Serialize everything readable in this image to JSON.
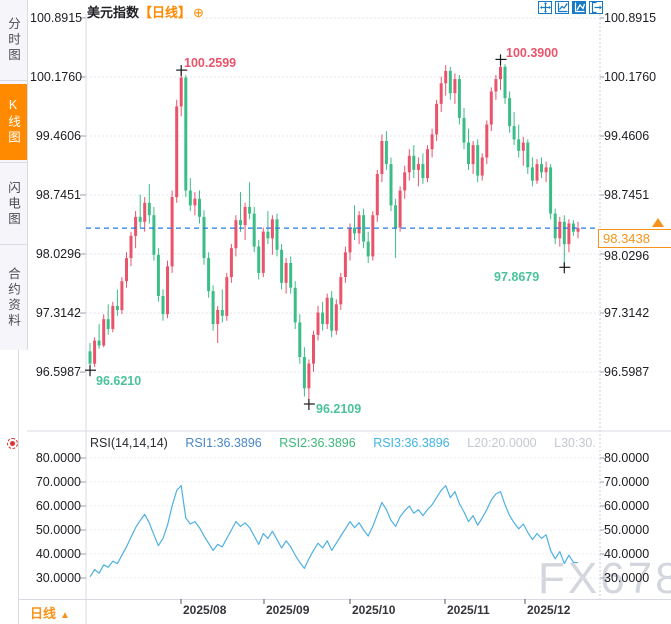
{
  "sidebar": {
    "tabs": [
      {
        "label": "分时图",
        "active": false
      },
      {
        "label": "K线图",
        "active": true
      },
      {
        "label": "闪电图",
        "active": false
      },
      {
        "label": "合约资料",
        "active": false
      }
    ]
  },
  "header": {
    "title": "美元指数",
    "period_tag": "【日线】",
    "plus_icon": "⊕"
  },
  "toolbar": {
    "icons": [
      "move-icon",
      "fit-scale-icon",
      "auto-scroll-icon",
      "exit-fullscreen-icon"
    ]
  },
  "axes": {
    "price_ticks": [
      "100.8915",
      "100.1760",
      "99.4606",
      "98.7451",
      "98.0296",
      "97.3142",
      "96.5987"
    ],
    "rsi_ticks": [
      "80.0000",
      "70.0000",
      "60.0000",
      "50.0000",
      "40.0000",
      "30.0000"
    ],
    "months": [
      "2025/08",
      "2025/09",
      "2025/10",
      "2025/11",
      "2025/12"
    ]
  },
  "annotations": {
    "high1": "100.2599",
    "high2": "100.3900",
    "low1": "96.6210",
    "low2": "96.2109",
    "low3": "97.8679"
  },
  "current_price": {
    "value": "98.3438"
  },
  "rsi_header": {
    "name": "RSI(14,14,14)",
    "rsi1": "RSI1:36.3896",
    "rsi2": "RSI2:36.3896",
    "rsi3": "RSI3:36.3896",
    "l20": "L20:20.0000",
    "l30": "L30:30."
  },
  "footer": {
    "period": "日线",
    "arrow": "▲"
  },
  "watermark": "FX678",
  "colors": {
    "up": "#e9546b",
    "down": "#3bbd87",
    "accent_orange": "#f7931a",
    "dashed_line": "#2779e3",
    "rsi_line": "#4fb0e2",
    "grid": "#d9dbe2"
  },
  "chart_data": {
    "type": "candlestick",
    "title": "美元指数 日线",
    "x_labels": [
      "2025/08",
      "2025/09",
      "2025/10",
      "2025/11",
      "2025/12"
    ],
    "panels": [
      {
        "type": "candlestick",
        "ylim": [
          96.5987,
          100.8915
        ],
        "up_color": "#e9546b",
        "down_color": "#3bbd87",
        "last_price": 98.3438,
        "candles": [
          [
            96.85,
            96.95,
            96.621,
            96.7
          ],
          [
            96.7,
            97.02,
            96.66,
            96.98
          ],
          [
            96.98,
            97.18,
            96.88,
            96.92
          ],
          [
            96.92,
            97.3,
            96.9,
            97.24
          ],
          [
            97.24,
            97.42,
            97.05,
            97.12
          ],
          [
            97.12,
            97.45,
            97.08,
            97.4
          ],
          [
            97.4,
            97.6,
            97.28,
            97.35
          ],
          [
            97.35,
            97.75,
            97.3,
            97.7
          ],
          [
            97.7,
            98.05,
            97.62,
            97.98
          ],
          [
            97.98,
            98.3,
            97.88,
            98.25
          ],
          [
            98.25,
            98.55,
            98.1,
            98.48
          ],
          [
            98.48,
            98.75,
            98.35,
            98.42
          ],
          [
            98.42,
            98.72,
            98.3,
            98.65
          ],
          [
            98.65,
            98.88,
            98.4,
            98.5
          ],
          [
            98.5,
            98.6,
            97.95,
            98.02
          ],
          [
            98.02,
            98.1,
            97.45,
            97.52
          ],
          [
            97.52,
            97.6,
            97.22,
            97.3
          ],
          [
            97.3,
            97.95,
            97.25,
            97.88
          ],
          [
            97.88,
            98.8,
            97.8,
            98.72
          ],
          [
            98.72,
            99.9,
            98.65,
            99.82
          ],
          [
            99.82,
            100.2599,
            99.7,
            100.17
          ],
          [
            100.17,
            100.2,
            98.72,
            98.8
          ],
          [
            98.8,
            98.95,
            98.55,
            98.62
          ],
          [
            98.62,
            98.78,
            98.5,
            98.7
          ],
          [
            98.7,
            98.8,
            98.4,
            98.48
          ],
          [
            98.48,
            98.56,
            97.9,
            97.98
          ],
          [
            97.98,
            98.05,
            97.5,
            97.58
          ],
          [
            97.58,
            97.65,
            97.1,
            97.18
          ],
          [
            97.18,
            97.4,
            96.95,
            97.35
          ],
          [
            97.35,
            97.6,
            97.2,
            97.28
          ],
          [
            97.28,
            97.8,
            97.22,
            97.75
          ],
          [
            97.75,
            98.15,
            97.68,
            98.1
          ],
          [
            98.1,
            98.5,
            98.0,
            98.44
          ],
          [
            98.44,
            98.78,
            98.3,
            98.38
          ],
          [
            98.38,
            98.65,
            98.2,
            98.6
          ],
          [
            98.6,
            98.9,
            98.45,
            98.52
          ],
          [
            98.52,
            98.6,
            98.05,
            98.12
          ],
          [
            98.12,
            98.2,
            97.72,
            97.8
          ],
          [
            97.8,
            98.35,
            97.75,
            98.3
          ],
          [
            98.3,
            98.55,
            98.15,
            98.22
          ],
          [
            98.22,
            98.5,
            98.02,
            98.45
          ],
          [
            98.45,
            98.52,
            98.0,
            98.08
          ],
          [
            98.08,
            98.15,
            97.6,
            97.68
          ],
          [
            97.68,
            97.98,
            97.55,
            97.92
          ],
          [
            97.92,
            98.0,
            97.55,
            97.62
          ],
          [
            97.62,
            97.7,
            97.12,
            97.2
          ],
          [
            97.2,
            97.3,
            96.7,
            96.78
          ],
          [
            96.78,
            96.9,
            96.3,
            96.4
          ],
          [
            96.4,
            96.75,
            96.2109,
            96.7
          ],
          [
            96.7,
            97.1,
            96.6,
            97.05
          ],
          [
            97.05,
            97.4,
            96.98,
            97.32
          ],
          [
            97.32,
            97.45,
            97.1,
            97.18
          ],
          [
            97.18,
            97.55,
            97.12,
            97.5
          ],
          [
            97.5,
            97.58,
            97.02,
            97.1
          ],
          [
            97.1,
            97.48,
            97.05,
            97.42
          ],
          [
            97.42,
            97.8,
            97.35,
            97.75
          ],
          [
            97.75,
            98.12,
            97.68,
            98.05
          ],
          [
            98.05,
            98.4,
            97.95,
            98.35
          ],
          [
            98.35,
            98.62,
            98.2,
            98.28
          ],
          [
            98.28,
            98.55,
            98.15,
            98.5
          ],
          [
            98.5,
            98.58,
            98.1,
            98.18
          ],
          [
            98.18,
            98.3,
            97.92,
            98.0
          ],
          [
            98.0,
            98.55,
            97.95,
            98.5
          ],
          [
            98.5,
            99.05,
            98.42,
            99.0
          ],
          [
            99.0,
            99.48,
            98.9,
            99.4
          ],
          [
            99.4,
            99.52,
            99.05,
            99.12
          ],
          [
            99.12,
            99.2,
            98.55,
            98.62
          ],
          [
            98.62,
            98.7,
            97.98,
            98.35
          ],
          [
            98.35,
            98.85,
            98.3,
            98.8
          ],
          [
            98.8,
            99.1,
            98.7,
            99.02
          ],
          [
            99.02,
            99.3,
            98.92,
            99.22
          ],
          [
            99.22,
            99.35,
            98.95,
            99.05
          ],
          [
            99.05,
            99.2,
            98.85,
            99.12
          ],
          [
            99.12,
            99.25,
            98.88,
            98.95
          ],
          [
            98.95,
            99.35,
            98.9,
            99.3
          ],
          [
            99.3,
            99.55,
            99.2,
            99.48
          ],
          [
            99.48,
            99.9,
            99.4,
            99.85
          ],
          [
            99.85,
            100.18,
            99.75,
            100.1
          ],
          [
            100.1,
            100.32,
            99.95,
            100.25
          ],
          [
            100.25,
            100.3,
            99.9,
            99.98
          ],
          [
            99.98,
            100.22,
            99.85,
            100.15
          ],
          [
            100.15,
            100.2,
            99.6,
            99.68
          ],
          [
            99.68,
            99.8,
            99.3,
            99.38
          ],
          [
            99.38,
            99.55,
            99.05,
            99.12
          ],
          [
            99.12,
            99.4,
            99.0,
            99.35
          ],
          [
            99.35,
            99.42,
            98.9,
            98.98
          ],
          [
            98.98,
            99.25,
            98.92,
            99.2
          ],
          [
            99.2,
            99.65,
            99.12,
            99.6
          ],
          [
            99.6,
            100.05,
            99.52,
            100.0
          ],
          [
            100.0,
            100.2,
            99.9,
            100.15
          ],
          [
            100.15,
            100.39,
            100.02,
            100.3
          ],
          [
            100.3,
            100.33,
            99.85,
            99.92
          ],
          [
            99.92,
            100.0,
            99.5,
            99.58
          ],
          [
            99.58,
            99.75,
            99.35,
            99.42
          ],
          [
            99.42,
            99.6,
            99.2,
            99.28
          ],
          [
            99.28,
            99.45,
            99.1,
            99.38
          ],
          [
            99.38,
            99.42,
            99.0,
            99.08
          ],
          [
            99.08,
            99.2,
            98.85,
            98.92
          ],
          [
            98.92,
            99.18,
            98.88,
            99.12
          ],
          [
            99.12,
            99.2,
            98.95,
            99.02
          ],
          [
            99.02,
            99.15,
            98.9,
            99.08
          ],
          [
            99.08,
            99.12,
            98.45,
            98.52
          ],
          [
            98.52,
            98.58,
            98.15,
            98.22
          ],
          [
            98.22,
            98.48,
            98.12,
            98.42
          ],
          [
            98.42,
            98.5,
            97.8679,
            98.15
          ],
          [
            98.15,
            98.45,
            98.05,
            98.4
          ],
          [
            98.4,
            98.44,
            98.25,
            98.3
          ],
          [
            98.3,
            98.42,
            98.22,
            98.3438
          ]
        ],
        "marked_extremes": [
          {
            "index": 0,
            "price": 96.621,
            "kind": "low"
          },
          {
            "index": 20,
            "price": 100.2599,
            "kind": "high"
          },
          {
            "index": 48,
            "price": 96.2109,
            "kind": "low"
          },
          {
            "index": 90,
            "price": 100.39,
            "kind": "high"
          },
          {
            "index": 104,
            "price": 97.8679,
            "kind": "low"
          }
        ]
      },
      {
        "type": "line",
        "name": "RSI(14,14,14)",
        "ylim": [
          30,
          80
        ],
        "levels": [
          20,
          30
        ],
        "line_color": "#4fb0e2",
        "values": [
          30.5,
          33.5,
          32.0,
          35.5,
          34.5,
          37.0,
          36.0,
          39.5,
          43,
          47,
          51,
          54,
          56.5,
          53,
          48,
          43.5,
          46.5,
          52,
          60,
          66.5,
          68.5,
          55,
          52.5,
          53.5,
          51,
          47.5,
          44.5,
          41.5,
          44,
          43,
          46.5,
          50,
          53.5,
          51.5,
          53,
          51,
          47.5,
          44,
          48.5,
          46.5,
          49.5,
          46,
          42.5,
          45.5,
          43,
          39.5,
          36.5,
          34,
          38,
          41.5,
          44.5,
          42.5,
          45.5,
          41.5,
          44.5,
          47.5,
          50.5,
          53.5,
          51,
          53,
          50,
          47.5,
          51.5,
          56.5,
          61.5,
          58.5,
          54,
          51.5,
          55.5,
          58,
          60,
          57,
          58.5,
          56,
          58.5,
          60.5,
          63.5,
          66.5,
          68.5,
          63.5,
          66,
          61,
          57.5,
          53.5,
          56,
          52,
          55,
          58.5,
          62.5,
          65,
          66,
          60.5,
          56,
          53,
          50.5,
          52.5,
          49,
          46,
          48.5,
          46.5,
          48,
          41.5,
          38,
          41,
          36,
          39.5,
          36.5,
          36.39
        ]
      }
    ]
  }
}
